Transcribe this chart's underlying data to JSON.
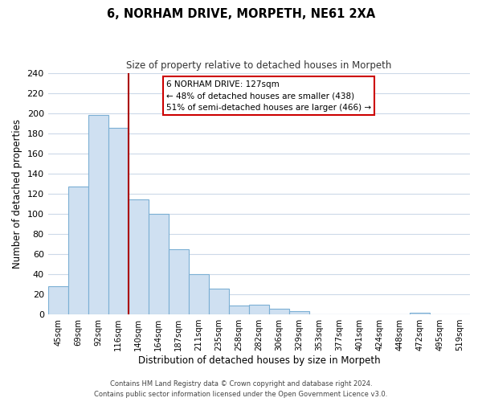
{
  "title": "6, NORHAM DRIVE, MORPETH, NE61 2XA",
  "subtitle": "Size of property relative to detached houses in Morpeth",
  "xlabel": "Distribution of detached houses by size in Morpeth",
  "ylabel": "Number of detached properties",
  "bar_labels": [
    "45sqm",
    "69sqm",
    "92sqm",
    "116sqm",
    "140sqm",
    "164sqm",
    "187sqm",
    "211sqm",
    "235sqm",
    "258sqm",
    "282sqm",
    "306sqm",
    "329sqm",
    "353sqm",
    "377sqm",
    "401sqm",
    "424sqm",
    "448sqm",
    "472sqm",
    "495sqm",
    "519sqm"
  ],
  "bar_values": [
    28,
    127,
    198,
    185,
    114,
    100,
    65,
    40,
    26,
    9,
    10,
    6,
    3,
    0,
    0,
    0,
    0,
    0,
    2,
    0,
    0
  ],
  "bar_color": "#cfe0f1",
  "bar_edge_color": "#7bafd4",
  "vline_color": "#aa0000",
  "vline_x_index": 3.5,
  "annotation_title": "6 NORHAM DRIVE: 127sqm",
  "annotation_line1": "← 48% of detached houses are smaller (438)",
  "annotation_line2": "51% of semi-detached houses are larger (466) →",
  "annotation_box_color": "#ffffff",
  "annotation_box_edge": "#cc0000",
  "ylim": [
    0,
    240
  ],
  "yticks": [
    0,
    20,
    40,
    60,
    80,
    100,
    120,
    140,
    160,
    180,
    200,
    220,
    240
  ],
  "footer1": "Contains HM Land Registry data © Crown copyright and database right 2024.",
  "footer2": "Contains public sector information licensed under the Open Government Licence v3.0.",
  "background_color": "#ffffff",
  "grid_color": "#ccd9e8"
}
